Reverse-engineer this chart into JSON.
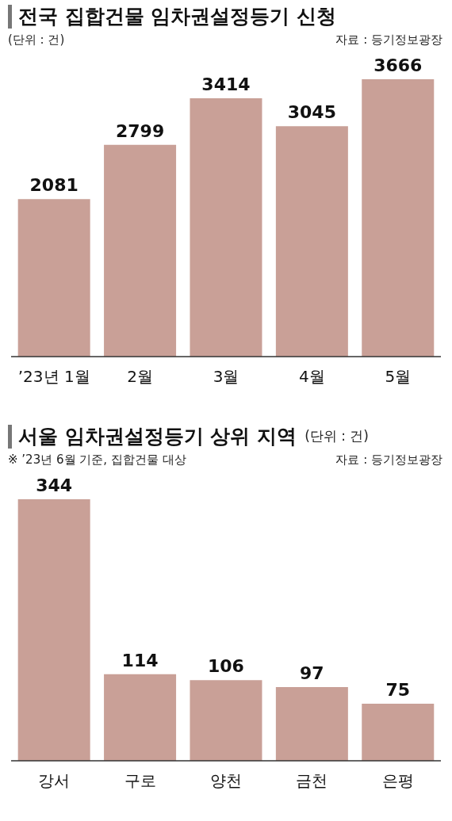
{
  "chart_data": [
    {
      "type": "bar",
      "title": "전국 집합건물 임차권설정등기 신청",
      "subtitle": "(단위 : 건)",
      "annotations": [
        "자료 : 등기정보광장"
      ],
      "categories": [
        "’23년 1월",
        "2월",
        "3월",
        "4월",
        "5월"
      ],
      "values": [
        2081,
        2799,
        3414,
        3045,
        3666
      ],
      "color": "#c9a097",
      "data_labels": true
    },
    {
      "type": "bar",
      "title": "서울 임차권설정등기 상위 지역",
      "subtitle": "(단위 : 건)",
      "annotations": [
        "※ ’23년 6월 기준, 집합건물 대상",
        "자료 : 등기정보광장"
      ],
      "categories": [
        "강서",
        "구로",
        "양천",
        "금천",
        "은평"
      ],
      "values": [
        344,
        114,
        106,
        97,
        75
      ],
      "color": "#c9a097",
      "data_labels": true
    }
  ]
}
